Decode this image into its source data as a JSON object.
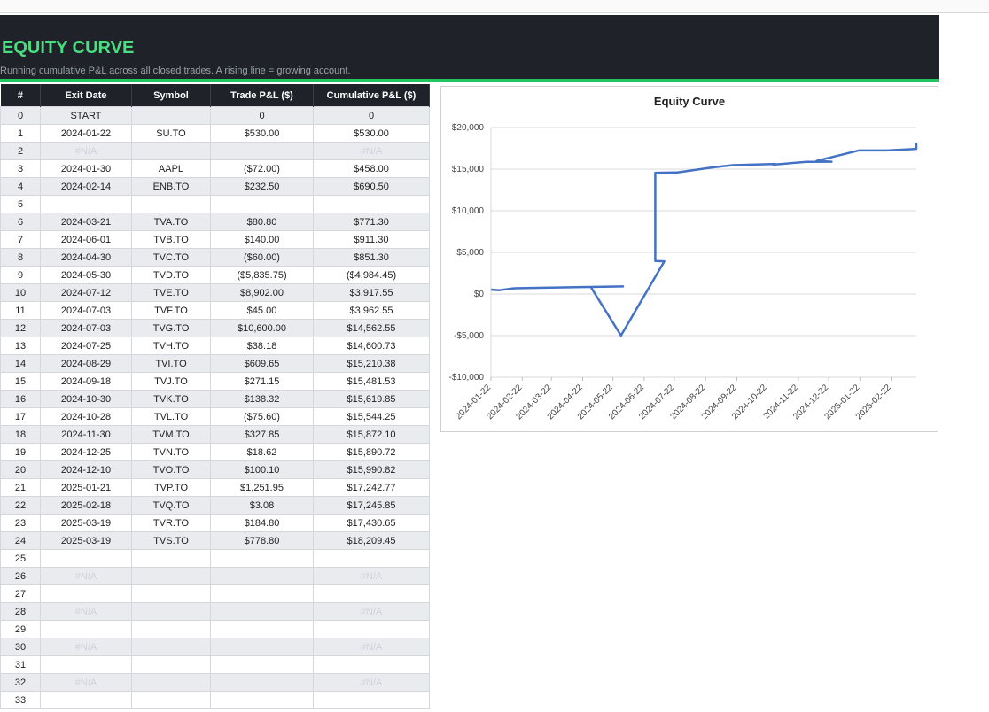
{
  "header": {
    "title": "EQUITY CURVE",
    "subtitle": "Running cumulative P&L across all closed trades. A rising line = growing account."
  },
  "table": {
    "columns": [
      "#",
      "Exit Date",
      "Symbol",
      "Trade P&L ($)",
      "Cumulative P&L ($)"
    ],
    "rows": [
      [
        0,
        "START",
        null,
        0,
        0
      ],
      [
        1,
        "2024-01-22",
        "SU.TO",
        "$530.00",
        "$530.00"
      ],
      [
        2,
        "#N/A",
        null,
        null,
        "#N/A"
      ],
      [
        3,
        "2024-01-30",
        "AAPL",
        "($72.00)",
        "$458.00"
      ],
      [
        4,
        "2024-02-14",
        "ENB.TO",
        "$232.50",
        "$690.50"
      ],
      [
        5,
        null,
        null,
        null,
        null
      ],
      [
        6,
        "2024-03-21",
        "TVA.TO",
        "$80.80",
        "$771.30"
      ],
      [
        7,
        "2024-06-01",
        "TVB.TO",
        "$140.00",
        "$911.30"
      ],
      [
        8,
        "2024-04-30",
        "TVC.TO",
        "($60.00)",
        "$851.30"
      ],
      [
        9,
        "2024-05-30",
        "TVD.TO",
        "($5,835.75)",
        "($4,984.45)"
      ],
      [
        10,
        "2024-07-12",
        "TVE.TO",
        "$8,902.00",
        "$3,917.55"
      ],
      [
        11,
        "2024-07-03",
        "TVF.TO",
        "$45.00",
        "$3,962.55"
      ],
      [
        12,
        "2024-07-03",
        "TVG.TO",
        "$10,600.00",
        "$14,562.55"
      ],
      [
        13,
        "2024-07-25",
        "TVH.TO",
        "$38.18",
        "$14,600.73"
      ],
      [
        14,
        "2024-08-29",
        "TVI.TO",
        "$609.65",
        "$15,210.38"
      ],
      [
        15,
        "2024-09-18",
        "TVJ.TO",
        "$271.15",
        "$15,481.53"
      ],
      [
        16,
        "2024-10-30",
        "TVK.TO",
        "$138.32",
        "$15,619.85"
      ],
      [
        17,
        "2024-10-28",
        "TVL.TO",
        "($75.60)",
        "$15,544.25"
      ],
      [
        18,
        "2024-11-30",
        "TVM.TO",
        "$327.85",
        "$15,872.10"
      ],
      [
        19,
        "2024-12-25",
        "TVN.TO",
        "$18.62",
        "$15,890.72"
      ],
      [
        20,
        "2024-12-10",
        "TVO.TO",
        "$100.10",
        "$15,990.82"
      ],
      [
        21,
        "2025-01-21",
        "TVP.TO",
        "$1,251.95",
        "$17,242.77"
      ],
      [
        22,
        "2025-02-18",
        "TVQ.TO",
        "$3.08",
        "$17,245.85"
      ],
      [
        23,
        "2025-03-19",
        "TVR.TO",
        "$184.80",
        "$17,430.65"
      ],
      [
        24,
        "2025-03-19",
        "TVS.TO",
        "$778.80",
        "$18,209.45"
      ],
      [
        25,
        null,
        null,
        null,
        null
      ],
      [
        26,
        "#N/A",
        null,
        null,
        "#N/A"
      ],
      [
        27,
        null,
        null,
        null,
        null
      ],
      [
        28,
        "#N/A",
        null,
        null,
        "#N/A"
      ],
      [
        29,
        null,
        null,
        null,
        null
      ],
      [
        30,
        "#N/A",
        null,
        null,
        "#N/A"
      ],
      [
        31,
        null,
        null,
        null,
        null
      ],
      [
        32,
        "#N/A",
        null,
        null,
        "#N/A"
      ],
      [
        33,
        null,
        null,
        null,
        null
      ]
    ]
  },
  "chart_data": {
    "type": "line",
    "title": "Equity Curve",
    "x": [
      "2024-01-22",
      "2024-01-30",
      "2024-02-14",
      "2024-03-21",
      "2024-06-01",
      "2024-04-30",
      "2024-05-30",
      "2024-07-12",
      "2024-07-03",
      "2024-07-03",
      "2024-07-25",
      "2024-08-29",
      "2024-09-18",
      "2024-10-30",
      "2024-10-28",
      "2024-11-30",
      "2024-12-25",
      "2024-12-10",
      "2025-01-21",
      "2025-02-18",
      "2025-03-19",
      "2025-03-19"
    ],
    "values": [
      530,
      458,
      690.5,
      771.3,
      911.3,
      851.3,
      -4984.45,
      3917.55,
      3962.55,
      14562.55,
      14600.73,
      15210.38,
      15481.53,
      15619.85,
      15544.25,
      15872.1,
      15890.72,
      15990.82,
      17242.77,
      17245.85,
      17430.65,
      18209.45
    ],
    "color": "#4472c4",
    "xlim": [
      "2024-01-22",
      "2025-03-19"
    ],
    "xticks": [
      "2024-01-22",
      "2024-02-22",
      "2024-03-22",
      "2024-04-22",
      "2024-05-22",
      "2024-06-22",
      "2024-07-22",
      "2024-08-22",
      "2024-09-22",
      "2024-10-22",
      "2024-11-22",
      "2024-12-22",
      "2025-01-22",
      "2025-02-22"
    ],
    "ylim": [
      -10000,
      20000
    ],
    "yticks": [
      {
        "value": -10000,
        "label": "-$10,000"
      },
      {
        "value": -5000,
        "label": "-$5,000"
      },
      {
        "value": 0,
        "label": "$0"
      },
      {
        "value": 5000,
        "label": "$5,000"
      },
      {
        "value": 10000,
        "label": "$10,000"
      },
      {
        "value": 15000,
        "label": "$15,000"
      },
      {
        "value": 20000,
        "label": "$20,000"
      }
    ],
    "grid": true
  }
}
